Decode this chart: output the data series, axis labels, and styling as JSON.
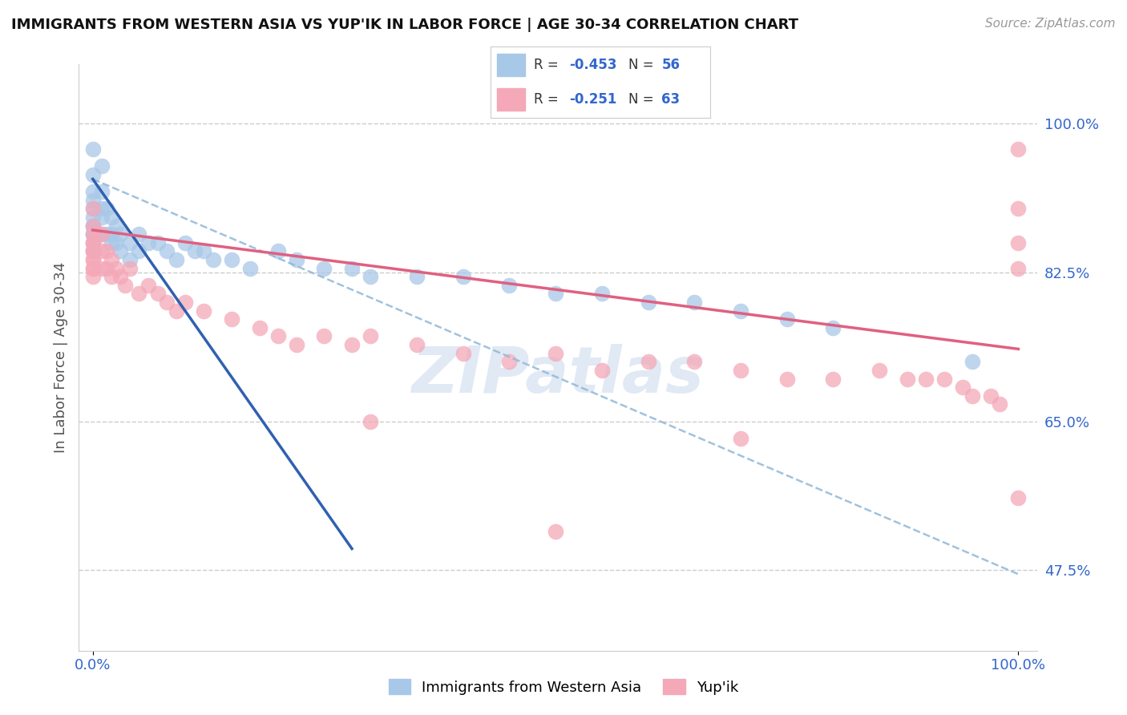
{
  "title": "IMMIGRANTS FROM WESTERN ASIA VS YUP'IK IN LABOR FORCE | AGE 30-34 CORRELATION CHART",
  "source": "Source: ZipAtlas.com",
  "ylabel": "In Labor Force | Age 30-34",
  "ytick_labels": [
    "47.5%",
    "65.0%",
    "82.5%",
    "100.0%"
  ],
  "ytick_values": [
    0.475,
    0.65,
    0.825,
    1.0
  ],
  "xtick_labels": [
    "0.0%",
    "100.0%"
  ],
  "color_blue": "#A8C8E8",
  "color_pink": "#F4A8B8",
  "line_color_blue": "#3060B0",
  "line_color_pink": "#E06080",
  "line_color_blue_dashed": "#90B8D8",
  "background_color": "#FFFFFF",
  "blue_scatter_x": [
    0.0,
    0.0,
    0.0,
    0.0,
    0.0,
    0.0,
    0.0,
    0.0,
    0.0,
    0.0,
    0.0,
    0.0,
    0.01,
    0.01,
    0.01,
    0.01,
    0.01,
    0.015,
    0.015,
    0.02,
    0.02,
    0.02,
    0.025,
    0.025,
    0.03,
    0.03,
    0.04,
    0.04,
    0.05,
    0.05,
    0.06,
    0.07,
    0.08,
    0.09,
    0.1,
    0.11,
    0.12,
    0.13,
    0.15,
    0.17,
    0.2,
    0.22,
    0.25,
    0.28,
    0.3,
    0.35,
    0.4,
    0.45,
    0.5,
    0.55,
    0.6,
    0.65,
    0.7,
    0.75,
    0.8,
    0.95
  ],
  "blue_scatter_y": [
    0.97,
    0.94,
    0.92,
    0.91,
    0.9,
    0.89,
    0.88,
    0.88,
    0.87,
    0.87,
    0.86,
    0.85,
    0.95,
    0.92,
    0.9,
    0.89,
    0.87,
    0.9,
    0.87,
    0.89,
    0.87,
    0.86,
    0.88,
    0.86,
    0.87,
    0.85,
    0.86,
    0.84,
    0.87,
    0.85,
    0.86,
    0.86,
    0.85,
    0.84,
    0.86,
    0.85,
    0.85,
    0.84,
    0.84,
    0.83,
    0.85,
    0.84,
    0.83,
    0.83,
    0.82,
    0.82,
    0.82,
    0.81,
    0.8,
    0.8,
    0.79,
    0.79,
    0.78,
    0.77,
    0.76,
    0.72
  ],
  "pink_scatter_x": [
    0.0,
    0.0,
    0.0,
    0.0,
    0.0,
    0.0,
    0.0,
    0.0,
    0.0,
    0.0,
    0.0,
    0.0,
    0.01,
    0.01,
    0.01,
    0.015,
    0.015,
    0.02,
    0.02,
    0.025,
    0.03,
    0.035,
    0.04,
    0.05,
    0.06,
    0.07,
    0.08,
    0.09,
    0.1,
    0.12,
    0.15,
    0.18,
    0.2,
    0.22,
    0.25,
    0.28,
    0.3,
    0.35,
    0.4,
    0.45,
    0.5,
    0.55,
    0.6,
    0.65,
    0.7,
    0.75,
    0.8,
    0.85,
    0.88,
    0.9,
    0.92,
    0.94,
    0.95,
    0.97,
    0.98,
    1.0,
    1.0,
    1.0,
    1.0,
    1.0,
    0.3,
    0.7,
    0.5
  ],
  "pink_scatter_y": [
    0.9,
    0.88,
    0.87,
    0.86,
    0.86,
    0.85,
    0.85,
    0.84,
    0.84,
    0.83,
    0.83,
    0.82,
    0.87,
    0.85,
    0.83,
    0.85,
    0.83,
    0.84,
    0.82,
    0.83,
    0.82,
    0.81,
    0.83,
    0.8,
    0.81,
    0.8,
    0.79,
    0.78,
    0.79,
    0.78,
    0.77,
    0.76,
    0.75,
    0.74,
    0.75,
    0.74,
    0.75,
    0.74,
    0.73,
    0.72,
    0.73,
    0.71,
    0.72,
    0.72,
    0.71,
    0.7,
    0.7,
    0.71,
    0.7,
    0.7,
    0.7,
    0.69,
    0.68,
    0.68,
    0.67,
    0.97,
    0.9,
    0.86,
    0.83,
    0.56,
    0.65,
    0.63,
    0.52
  ]
}
